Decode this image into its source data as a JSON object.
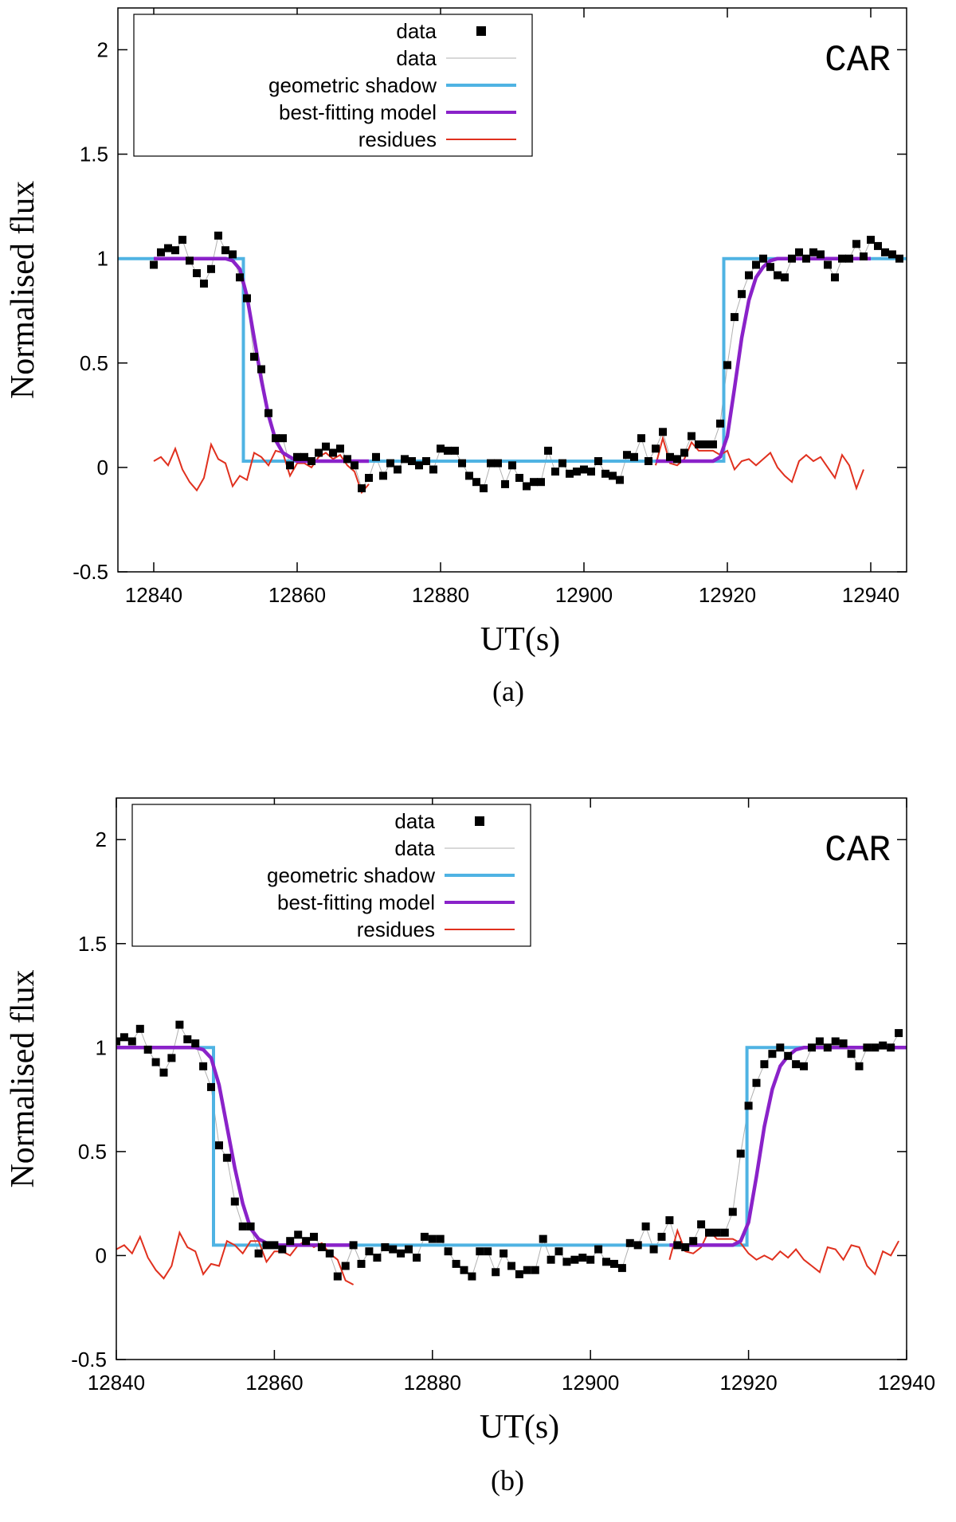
{
  "chart_data": [
    {
      "type": "scatter",
      "panel_label": "(a)",
      "annotation": "CAR",
      "xlabel": "UT(s)",
      "ylabel": "Normalised flux",
      "xlim": [
        12835,
        12945
      ],
      "ylim": [
        -0.5,
        2.2
      ],
      "xticks": [
        12840,
        12860,
        12880,
        12900,
        12920,
        12940
      ],
      "yticks": [
        -0.5,
        0,
        0.5,
        1,
        1.5,
        2
      ],
      "xtick_labels": [
        "12840",
        "12860",
        "12880",
        "12900",
        "12920",
        "12940"
      ],
      "ytick_labels": [
        "-0.5",
        "0",
        "0.5",
        "1",
        "1.5",
        "2"
      ],
      "legend": {
        "position": "top-left",
        "entries": [
          {
            "label": "data",
            "style": "points"
          },
          {
            "label": "data",
            "style": "thin-line"
          },
          {
            "label": "geometric shadow",
            "style": "line"
          },
          {
            "label": "best-fitting model",
            "style": "line"
          },
          {
            "label": "residues",
            "style": "line"
          }
        ]
      },
      "colors": {
        "data": "#000000",
        "data_line": "#b0b0b0",
        "shadow": "#4fb3e3",
        "model": "#8a22c9",
        "residues": "#e0301e"
      },
      "series": [
        {
          "name": "data",
          "x": [
            12840,
            12841,
            12842,
            12843,
            12844,
            12845,
            12846,
            12847,
            12848,
            12849,
            12850,
            12851,
            12852,
            12853,
            12854,
            12855,
            12856,
            12857,
            12858,
            12859,
            12860,
            12861,
            12862,
            12863,
            12864,
            12865,
            12866,
            12867,
            12868,
            12869,
            12870,
            12871,
            12872,
            12873,
            12874,
            12875,
            12876,
            12877,
            12878,
            12879,
            12880,
            12881,
            12882,
            12883,
            12884,
            12885,
            12886,
            12887,
            12888,
            12889,
            12890,
            12891,
            12892,
            12893,
            12894,
            12895,
            12896,
            12897,
            12898,
            12899,
            12900,
            12901,
            12902,
            12903,
            12904,
            12905,
            12906,
            12907,
            12908,
            12909,
            12910,
            12911,
            12912,
            12913,
            12914,
            12915,
            12916,
            12917,
            12918,
            12919,
            12920,
            12921,
            12922,
            12923,
            12924,
            12925,
            12926,
            12927,
            12928,
            12929,
            12930,
            12931,
            12932,
            12933,
            12934,
            12935,
            12936,
            12937,
            12938,
            12939,
            12940,
            12941,
            12942,
            12943,
            12944
          ],
          "y": [
            0.97,
            1.03,
            1.05,
            1.04,
            1.09,
            0.99,
            0.93,
            0.88,
            0.95,
            1.11,
            1.04,
            1.02,
            0.91,
            0.81,
            0.53,
            0.47,
            0.26,
            0.14,
            0.14,
            0.01,
            0.05,
            0.05,
            0.03,
            0.07,
            0.1,
            0.07,
            0.09,
            0.04,
            0.01,
            -0.1,
            -0.05,
            0.05,
            -0.04,
            0.02,
            -0.01,
            0.04,
            0.03,
            0.01,
            0.03,
            -0.01,
            0.09,
            0.08,
            0.08,
            0.02,
            -0.04,
            -0.07,
            -0.1,
            0.02,
            0.02,
            -0.08,
            0.01,
            -0.05,
            -0.09,
            -0.07,
            -0.07,
            0.08,
            -0.02,
            0.02,
            -0.03,
            -0.02,
            -0.01,
            -0.02,
            0.03,
            -0.03,
            -0.04,
            -0.06,
            0.06,
            0.05,
            0.14,
            0.03,
            0.09,
            0.17,
            0.05,
            0.04,
            0.07,
            0.15,
            0.11,
            0.11,
            0.11,
            0.21,
            0.49,
            0.72,
            0.83,
            0.92,
            0.97,
            1.0,
            0.96,
            0.92,
            0.91,
            1.0,
            1.03,
            1.0,
            1.03,
            1.02,
            0.97,
            0.91,
            1.0,
            1.0,
            1.07,
            1.01,
            1.09,
            1.06,
            1.03,
            1.02,
            1.0
          ]
        },
        {
          "name": "geometric shadow",
          "x": [
            12835,
            12852.5,
            12852.5,
            12919.5,
            12919.5,
            12945
          ],
          "y": [
            1,
            1,
            0.03,
            0.03,
            1,
            1
          ]
        },
        {
          "name": "best-fitting model (ingress)",
          "x": [
            12840,
            12846,
            12850,
            12851,
            12852,
            12853,
            12854,
            12855,
            12856,
            12857,
            12858,
            12859,
            12860,
            12864,
            12870
          ],
          "y": [
            1,
            1,
            1,
            0.99,
            0.95,
            0.82,
            0.62,
            0.42,
            0.25,
            0.13,
            0.07,
            0.05,
            0.03,
            0.03,
            0.03
          ]
        },
        {
          "name": "best-fitting model (egress)",
          "x": [
            12910,
            12915,
            12918,
            12919,
            12920,
            12921,
            12922,
            12923,
            12924,
            12925,
            12926,
            12927,
            12928,
            12930,
            12940
          ],
          "y": [
            0.03,
            0.03,
            0.03,
            0.05,
            0.15,
            0.38,
            0.62,
            0.8,
            0.91,
            0.96,
            0.99,
            1.0,
            1.0,
            1.0,
            1.0
          ]
        },
        {
          "name": "residues (ingress)",
          "x": [
            12840,
            12841,
            12842,
            12843,
            12844,
            12845,
            12846,
            12847,
            12848,
            12849,
            12850,
            12851,
            12852,
            12853,
            12854,
            12855,
            12856,
            12857,
            12858,
            12859,
            12860,
            12861,
            12862,
            12863,
            12864,
            12865,
            12866,
            12867,
            12868,
            12869,
            12870
          ],
          "y": [
            0.03,
            0.05,
            0.01,
            0.09,
            -0.01,
            -0.07,
            -0.11,
            -0.05,
            0.11,
            0.04,
            0.02,
            -0.09,
            -0.04,
            -0.06,
            0.07,
            0.05,
            0.01,
            0.08,
            0.07,
            -0.04,
            0.02,
            0.02,
            0.0,
            0.05,
            0.07,
            0.04,
            0.06,
            0.01,
            -0.02,
            -0.12,
            -0.08
          ]
        },
        {
          "name": "residues (egress)",
          "x": [
            12910,
            12911,
            12912,
            12913,
            12914,
            12915,
            12916,
            12917,
            12918,
            12919,
            12920,
            12921,
            12922,
            12923,
            12924,
            12925,
            12926,
            12927,
            12928,
            12929,
            12930,
            12931,
            12932,
            12933,
            12934,
            12935,
            12936,
            12937,
            12938,
            12939
          ],
          "y": [
            0.01,
            0.14,
            0.02,
            0.01,
            0.04,
            0.12,
            0.08,
            0.08,
            0.08,
            0.06,
            0.08,
            -0.01,
            0.03,
            0.04,
            0.01,
            0.04,
            0.07,
            0.0,
            -0.04,
            -0.07,
            0.03,
            0.06,
            0.03,
            0.05,
            0.0,
            -0.05,
            0.06,
            0.01,
            -0.1,
            -0.01
          ]
        }
      ]
    },
    {
      "type": "scatter",
      "panel_label": "(b)",
      "annotation": "CAR",
      "xlabel": "UT(s)",
      "ylabel": "Normalised flux",
      "xlim": [
        12840,
        12940
      ],
      "ylim": [
        -0.5,
        2.2
      ],
      "xticks": [
        12840,
        12860,
        12880,
        12900,
        12920,
        12940
      ],
      "yticks": [
        -0.5,
        0,
        0.5,
        1,
        1.5,
        2
      ],
      "xtick_labels": [
        "12840",
        "12860",
        "12880",
        "12900",
        "12920",
        "12940"
      ],
      "ytick_labels": [
        "-0.5",
        "0",
        "0.5",
        "1",
        "1.5",
        "2"
      ],
      "legend": {
        "position": "top-left",
        "entries": [
          {
            "label": "data",
            "style": "points"
          },
          {
            "label": "data",
            "style": "thin-line"
          },
          {
            "label": "geometric shadow",
            "style": "line"
          },
          {
            "label": "best-fitting model",
            "style": "line"
          },
          {
            "label": "residues",
            "style": "line"
          }
        ]
      },
      "colors": {
        "data": "#000000",
        "data_line": "#b0b0b0",
        "shadow": "#4fb3e3",
        "model": "#8a22c9",
        "residues": "#e0301e"
      },
      "series": [
        {
          "name": "data",
          "x": [
            12840,
            12841,
            12842,
            12843,
            12844,
            12845,
            12846,
            12847,
            12848,
            12849,
            12850,
            12851,
            12852,
            12853,
            12854,
            12855,
            12856,
            12857,
            12858,
            12859,
            12860,
            12861,
            12862,
            12863,
            12864,
            12865,
            12866,
            12867,
            12868,
            12869,
            12870,
            12871,
            12872,
            12873,
            12874,
            12875,
            12876,
            12877,
            12878,
            12879,
            12880,
            12881,
            12882,
            12883,
            12884,
            12885,
            12886,
            12887,
            12888,
            12889,
            12890,
            12891,
            12892,
            12893,
            12894,
            12895,
            12896,
            12897,
            12898,
            12899,
            12900,
            12901,
            12902,
            12903,
            12904,
            12905,
            12906,
            12907,
            12908,
            12909,
            12910,
            12911,
            12912,
            12913,
            12914,
            12915,
            12916,
            12917,
            12918,
            12919,
            12920,
            12921,
            12922,
            12923,
            12924,
            12925,
            12926,
            12927,
            12928,
            12929,
            12930,
            12931,
            12932,
            12933,
            12934,
            12935,
            12936,
            12937,
            12938,
            12939
          ],
          "y": [
            1.03,
            1.05,
            1.03,
            1.09,
            0.99,
            0.93,
            0.88,
            0.95,
            1.11,
            1.04,
            1.02,
            0.91,
            0.81,
            0.53,
            0.47,
            0.26,
            0.14,
            0.14,
            0.01,
            0.05,
            0.05,
            0.03,
            0.07,
            0.1,
            0.07,
            0.09,
            0.04,
            0.01,
            -0.1,
            -0.05,
            0.05,
            -0.04,
            0.02,
            -0.01,
            0.04,
            0.03,
            0.01,
            0.03,
            -0.01,
            0.09,
            0.08,
            0.08,
            0.02,
            -0.04,
            -0.07,
            -0.1,
            0.02,
            0.02,
            -0.08,
            0.01,
            -0.05,
            -0.09,
            -0.07,
            -0.07,
            0.08,
            -0.02,
            0.02,
            -0.03,
            -0.02,
            -0.01,
            -0.02,
            0.03,
            -0.03,
            -0.04,
            -0.06,
            0.06,
            0.05,
            0.14,
            0.03,
            0.09,
            0.17,
            0.05,
            0.04,
            0.07,
            0.15,
            0.11,
            0.11,
            0.11,
            0.21,
            0.49,
            0.72,
            0.83,
            0.92,
            0.97,
            1.0,
            0.96,
            0.92,
            0.91,
            1.0,
            1.03,
            1.0,
            1.03,
            1.02,
            0.97,
            0.91,
            1.0,
            1.0,
            1.01,
            1.0,
            1.07
          ]
        },
        {
          "name": "geometric shadow",
          "x": [
            12840,
            12852.3,
            12852.3,
            12919.8,
            12919.8,
            12940
          ],
          "y": [
            1,
            1,
            0.05,
            0.05,
            1,
            1
          ]
        },
        {
          "name": "best-fitting model (ingress)",
          "x": [
            12840,
            12846,
            12850,
            12851,
            12852,
            12853,
            12854,
            12855,
            12856,
            12857,
            12858,
            12859,
            12860,
            12864,
            12870
          ],
          "y": [
            1,
            1,
            1,
            0.99,
            0.95,
            0.82,
            0.62,
            0.42,
            0.25,
            0.13,
            0.08,
            0.06,
            0.05,
            0.05,
            0.05
          ]
        },
        {
          "name": "best-fitting model (egress)",
          "x": [
            12910,
            12915,
            12918,
            12919,
            12920,
            12921,
            12922,
            12923,
            12924,
            12925,
            12926,
            12927,
            12928,
            12930,
            12940
          ],
          "y": [
            0.05,
            0.05,
            0.05,
            0.07,
            0.16,
            0.38,
            0.62,
            0.8,
            0.91,
            0.96,
            0.99,
            1.0,
            1.0,
            1.0,
            1.0
          ]
        },
        {
          "name": "residues (ingress)",
          "x": [
            12840,
            12841,
            12842,
            12843,
            12844,
            12845,
            12846,
            12847,
            12848,
            12849,
            12850,
            12851,
            12852,
            12853,
            12854,
            12855,
            12856,
            12857,
            12858,
            12859,
            12860,
            12861,
            12862,
            12863,
            12864,
            12865,
            12866,
            12867,
            12868,
            12869,
            12870
          ],
          "y": [
            0.03,
            0.05,
            0.01,
            0.09,
            -0.01,
            -0.07,
            -0.11,
            -0.05,
            0.11,
            0.04,
            0.02,
            -0.09,
            -0.04,
            -0.05,
            0.07,
            0.05,
            0.01,
            0.07,
            0.07,
            -0.03,
            0.02,
            0.02,
            0.0,
            0.05,
            0.07,
            0.04,
            0.06,
            0.01,
            -0.02,
            -0.12,
            -0.14
          ]
        },
        {
          "name": "residues (egress)",
          "x": [
            12910,
            12911,
            12912,
            12913,
            12914,
            12915,
            12916,
            12917,
            12918,
            12919,
            12920,
            12921,
            12922,
            12923,
            12924,
            12925,
            12926,
            12927,
            12928,
            12929,
            12930,
            12931,
            12932,
            12933,
            12934,
            12935,
            12936,
            12937,
            12938,
            12939
          ],
          "y": [
            -0.02,
            0.12,
            0.02,
            0.01,
            0.04,
            0.12,
            0.08,
            0.08,
            0.08,
            0.06,
            0.01,
            -0.02,
            0.0,
            -0.02,
            0.02,
            -0.01,
            0.03,
            -0.02,
            -0.05,
            -0.08,
            0.04,
            0.03,
            -0.02,
            0.05,
            0.04,
            -0.05,
            -0.09,
            0.02,
            0.0,
            0.07
          ]
        }
      ]
    }
  ]
}
